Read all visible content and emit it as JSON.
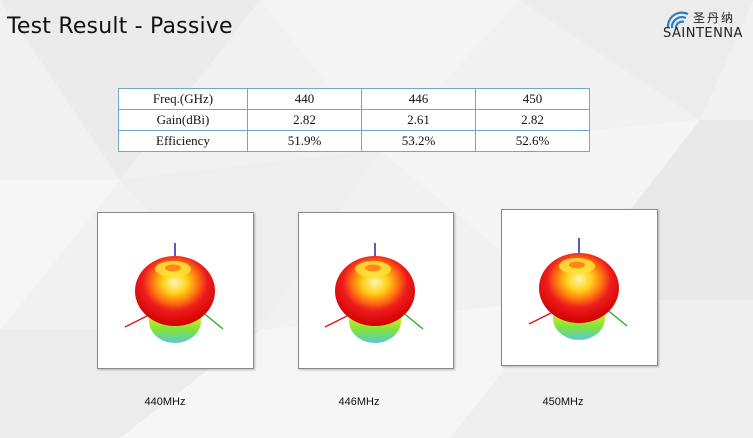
{
  "title": "Test Result - Passive",
  "logo": {
    "chinese": "圣丹纳",
    "english": "SAINTENNA"
  },
  "table": {
    "rows": [
      {
        "label": "Freq.(GHz)",
        "values": [
          "440",
          "446",
          "450"
        ]
      },
      {
        "label": "Gain(dBi)",
        "values": [
          "2.82",
          "2.61",
          "2.82"
        ]
      },
      {
        "label": "Efficiency",
        "values": [
          "51.9%",
          "53.2%",
          "52.6%"
        ]
      }
    ]
  },
  "patterns": [
    {
      "caption": "440MHz"
    },
    {
      "caption": "446MHz"
    },
    {
      "caption": "450MHz"
    }
  ]
}
